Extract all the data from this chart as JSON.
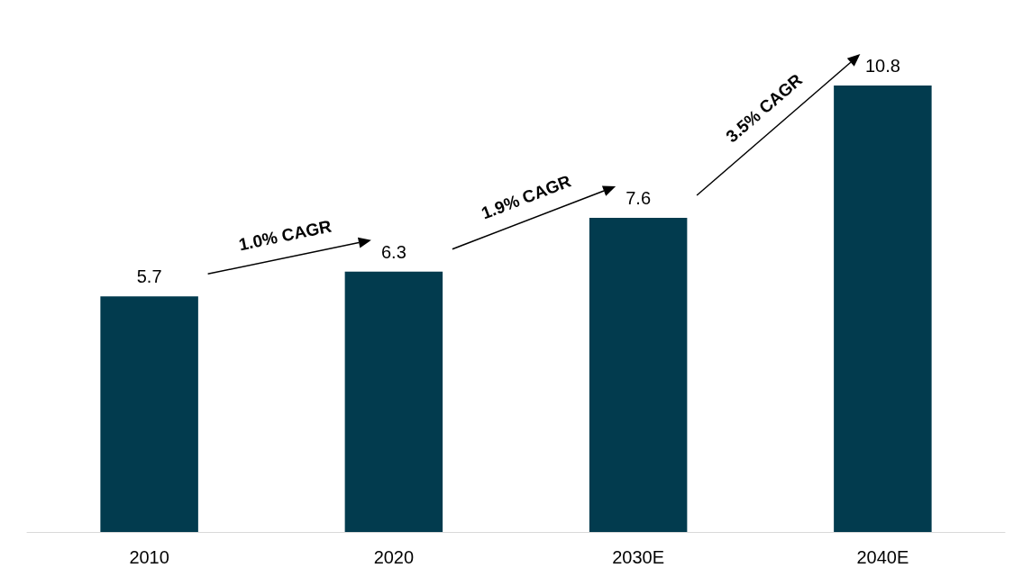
{
  "chart_data": {
    "type": "bar",
    "categories": [
      "2010",
      "2020",
      "2030E",
      "2040E"
    ],
    "values": [
      5.7,
      6.3,
      7.6,
      10.8
    ],
    "color": "#023b4e",
    "data_labels": true,
    "annotations": [
      "1.0% CAGR",
      "1.9% CAGR",
      "3.5% CAGR"
    ]
  }
}
